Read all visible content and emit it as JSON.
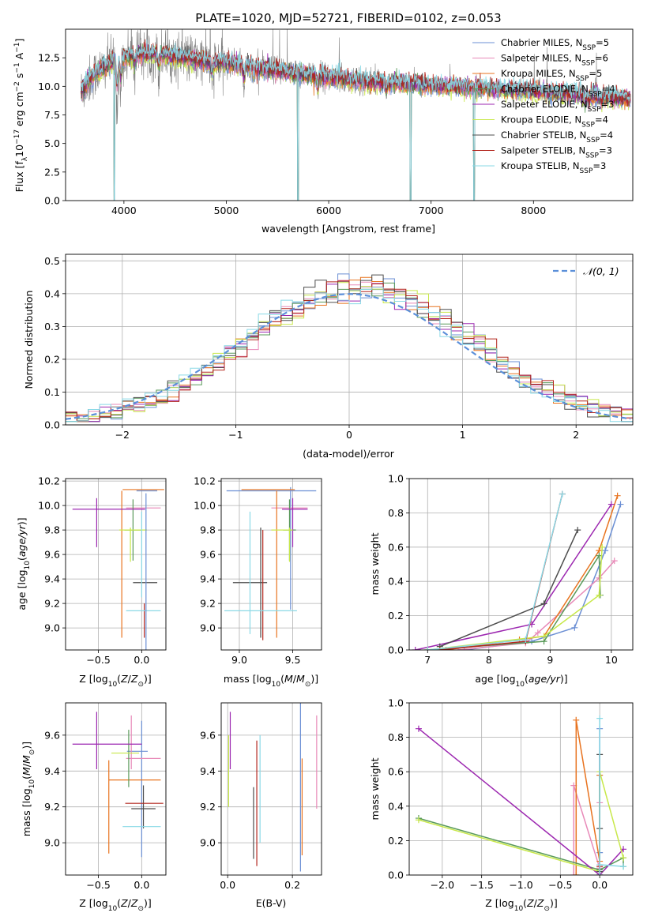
{
  "colors": {
    "series": [
      "#6b8fd4",
      "#e889b8",
      "#e8731f",
      "#5a9a5a",
      "#9c27b0",
      "#c8e84a",
      "#4d4d4d",
      "#b3261e",
      "#8ad9e6"
    ],
    "spectrum_data": "#808080",
    "normal_line": "#5b8fd9"
  },
  "legend_labels": [
    {
      "name": "Chabrier MILES, N",
      "sub": "SSP",
      "eq": "=5"
    },
    {
      "name": "Salpeter MILES, N",
      "sub": "SSP",
      "eq": "=6"
    },
    {
      "name": "Kroupa MILES, N",
      "sub": "SSP",
      "eq": "=5"
    },
    {
      "name": "Chabrier ELODIE, N",
      "sub": "SSP",
      "eq": "=4"
    },
    {
      "name": "Salpeter ELODIE, N",
      "sub": "SSP",
      "eq": "=3"
    },
    {
      "name": "Kroupa ELODIE, N",
      "sub": "SSP",
      "eq": "=4"
    },
    {
      "name": "Chabrier STELIB, N",
      "sub": "SSP",
      "eq": "=4"
    },
    {
      "name": "Salpeter STELIB, N",
      "sub": "SSP",
      "eq": "=3"
    },
    {
      "name": "Kroupa STELIB, N",
      "sub": "SSP",
      "eq": "=3"
    }
  ],
  "chart_data": [
    {
      "id": "spectrum",
      "type": "line",
      "title": "PLATE=1020, MJD=52721, FIBERID=0102, z=0.053",
      "xlabel": "wavelength [Angstrom, rest frame]",
      "ylabel": "Flux [f",
      "ylabel_parts": {
        "main": "Flux [f",
        "sub": "λ",
        "mid": "10",
        "sup1": "−17",
        "rest": " erg cm",
        "sup2": "−2",
        "rest2": " s",
        "sup3": "−1",
        "rest3": " A",
        "sup4": "−1",
        "close": "]"
      },
      "xlim": [
        3430,
        8970
      ],
      "ylim": [
        0,
        15
      ],
      "xticks": [
        4000,
        5000,
        6000,
        7000,
        8000
      ],
      "yticks": [
        0.0,
        2.5,
        5.0,
        7.5,
        10.0,
        12.5
      ],
      "ytick_labels": [
        "0.0",
        "2.5",
        "5.0",
        "7.5",
        "10.0",
        "12.5"
      ],
      "x_range_data": [
        3580,
        8950
      ],
      "continuum": [
        [
          3580,
          9.5
        ],
        [
          3700,
          11.0
        ],
        [
          3900,
          12.2
        ],
        [
          4100,
          12.8
        ],
        [
          4300,
          12.9
        ],
        [
          4500,
          12.6
        ],
        [
          4800,
          12.2
        ],
        [
          5200,
          11.8
        ],
        [
          5600,
          11.2
        ],
        [
          6000,
          10.8
        ],
        [
          6400,
          10.4
        ],
        [
          6800,
          10.2
        ],
        [
          7200,
          10.0
        ],
        [
          7600,
          9.8
        ],
        [
          8000,
          9.6
        ],
        [
          8400,
          9.3
        ],
        [
          8950,
          8.9
        ]
      ],
      "absorption": [
        [
          3934,
          4.0
        ],
        [
          3969,
          3.0
        ],
        [
          4102,
          1.5
        ],
        [
          4340,
          1.8
        ],
        [
          4861,
          1.5
        ],
        [
          5175,
          2.0
        ],
        [
          5270,
          1.2
        ],
        [
          5893,
          1.5
        ],
        [
          6563,
          1.0
        ],
        [
          8498,
          0.8
        ],
        [
          8542,
          1.0
        ],
        [
          8662,
          0.8
        ]
      ],
      "model_gaps": [
        [
          3905,
          0.0
        ],
        [
          5700,
          0.0
        ],
        [
          6800,
          0.0
        ],
        [
          7420,
          0.0
        ]
      ]
    },
    {
      "id": "residuals",
      "type": "bar",
      "xlabel": "(data-model)/error",
      "ylabel": "Normed distribution",
      "xlim": [
        -2.5,
        2.5
      ],
      "ylim": [
        0,
        0.52
      ],
      "xticks": [
        -2,
        -1,
        0,
        1,
        2
      ],
      "xtick_labels": [
        "−2",
        "−1",
        "0",
        "1",
        "2"
      ],
      "yticks": [
        0.0,
        0.1,
        0.2,
        0.3,
        0.4,
        0.5
      ],
      "ytick_labels": [
        "0.0",
        "0.1",
        "0.2",
        "0.3",
        "0.4",
        "0.5"
      ],
      "bin_width": 0.1,
      "legend": "𝒩(0, 1)"
    },
    {
      "id": "age_vs_Z",
      "type": "scatter",
      "xlabel": "Z [log",
      "xlabel_parts": {
        "a": "Z [log",
        "sub": "10",
        "b": "(Z/Z",
        "subsun": "⊙",
        "c": ")]"
      },
      "ylabel_parts": {
        "a": "age  [log",
        "sub": "10",
        "b": "(age/yr)]"
      },
      "xlim": [
        -0.88,
        0.28
      ],
      "ylim": [
        8.82,
        10.22
      ],
      "xticks": [
        -0.5,
        0.0
      ],
      "xtick_labels": [
        "−0.5",
        "0.0"
      ],
      "yticks": [
        9.0,
        9.2,
        9.4,
        9.6,
        9.8,
        10.0,
        10.2
      ],
      "ytick_labels": [
        "9.0",
        "9.2",
        "9.4",
        "9.6",
        "9.8",
        "10.0",
        "10.2"
      ],
      "points": [
        {
          "x": 0.06,
          "y": 10.12,
          "xe": 0.12,
          "ye": 0.0,
          "s": 0
        },
        {
          "x": 0.02,
          "y": 9.98,
          "xe": 0.2,
          "ye": 0.0,
          "s": 1
        },
        {
          "x": 0.02,
          "y": 10.13,
          "xe": 0.24,
          "ye": 0.0,
          "s": 2
        },
        {
          "x": -0.23,
          "y": 9.52,
          "xe": 0.0,
          "ye": 0.6,
          "s": 2
        },
        {
          "x": -0.1,
          "y": 9.8,
          "xe": 0.1,
          "ye": 0.25,
          "s": 3
        },
        {
          "x": -0.38,
          "y": 9.97,
          "xe": 0.42,
          "ye": 0.0,
          "s": 4
        },
        {
          "x": -0.52,
          "y": 9.86,
          "xe": 0.0,
          "ye": 0.2,
          "s": 4
        },
        {
          "x": -0.1,
          "y": 9.8,
          "xe": 0.16,
          "ye": 0.0,
          "s": 5
        },
        {
          "x": -0.13,
          "y": 9.68,
          "xe": 0.0,
          "ye": 0.14,
          "s": 5
        },
        {
          "x": 0.04,
          "y": 9.37,
          "xe": 0.14,
          "ye": 0.0,
          "s": 6
        },
        {
          "x": 0.03,
          "y": 9.06,
          "xe": 0.0,
          "ye": 0.14,
          "s": 7
        },
        {
          "x": 0.02,
          "y": 9.14,
          "xe": 0.2,
          "ye": 0.0,
          "s": 8
        },
        {
          "x": 0.0,
          "y": 9.6,
          "xe": 0.0,
          "ye": 0.35,
          "s": 8
        },
        {
          "x": 0.05,
          "y": 9.45,
          "xe": 0.0,
          "ye": 0.65,
          "s": 0
        }
      ]
    },
    {
      "id": "age_vs_mass",
      "type": "scatter",
      "xlabel_parts": {
        "a": "mass [log",
        "sub": "10",
        "b": "(M/M",
        "subsun": "⊙",
        "c": ")]"
      },
      "xlim": [
        8.83,
        9.77
      ],
      "ylim": [
        8.82,
        10.22
      ],
      "xticks": [
        9.0,
        9.5
      ],
      "xtick_labels": [
        "9.0",
        "9.5"
      ],
      "yticks": [
        9.0,
        9.2,
        9.4,
        9.6,
        9.8,
        10.0,
        10.2
      ],
      "ytick_labels": [
        "9.0",
        "9.2",
        "9.4",
        "9.6",
        "9.8",
        "10.0",
        "10.2"
      ],
      "points": [
        {
          "x": 9.3,
          "y": 10.12,
          "xe": 0.42,
          "ye": 0.0,
          "s": 0
        },
        {
          "x": 9.48,
          "y": 9.65,
          "xe": 0.0,
          "ye": 0.5,
          "s": 0
        },
        {
          "x": 9.47,
          "y": 9.98,
          "xe": 0.17,
          "ye": 0.0,
          "s": 1
        },
        {
          "x": 9.27,
          "y": 10.13,
          "xe": 0.25,
          "ye": 0.0,
          "s": 2
        },
        {
          "x": 9.35,
          "y": 9.52,
          "xe": 0.0,
          "ye": 0.6,
          "s": 2
        },
        {
          "x": 9.47,
          "y": 9.8,
          "xe": 0.06,
          "ye": 0.25,
          "s": 3
        },
        {
          "x": 9.52,
          "y": 9.97,
          "xe": 0.12,
          "ye": 0.0,
          "s": 4
        },
        {
          "x": 9.5,
          "y": 9.86,
          "xe": 0.0,
          "ye": 0.2,
          "s": 4
        },
        {
          "x": 9.4,
          "y": 9.8,
          "xe": 0.1,
          "ye": 0.0,
          "s": 5
        },
        {
          "x": 9.47,
          "y": 9.68,
          "xe": 0.0,
          "ye": 0.14,
          "s": 5
        },
        {
          "x": 9.1,
          "y": 9.37,
          "xe": 0.16,
          "ye": 0.0,
          "s": 6
        },
        {
          "x": 9.2,
          "y": 9.37,
          "xe": 0.0,
          "ye": 0.45,
          "s": 6
        },
        {
          "x": 9.22,
          "y": 9.35,
          "xe": 0.0,
          "ye": 0.45,
          "s": 7
        },
        {
          "x": 9.2,
          "y": 9.14,
          "xe": 0.34,
          "ye": 0.0,
          "s": 8
        },
        {
          "x": 9.1,
          "y": 9.45,
          "xe": 0.0,
          "ye": 0.5,
          "s": 8
        }
      ]
    },
    {
      "id": "mass_weight_vs_age",
      "type": "line",
      "xlabel_parts": {
        "a": "age  [log",
        "sub": "10",
        "b": "(age/yr)]"
      },
      "ylabel": "mass weight",
      "xlim": [
        6.7,
        10.35
      ],
      "ylim": [
        0,
        1
      ],
      "xticks": [
        7,
        8,
        9,
        10
      ],
      "xtick_labels": [
        "7",
        "8",
        "9",
        "10"
      ],
      "yticks": [
        0.0,
        0.2,
        0.4,
        0.6,
        0.8,
        1.0
      ],
      "ytick_labels": [
        "0.0",
        "0.2",
        "0.4",
        "0.6",
        "0.8",
        "1.0"
      ],
      "series": [
        {
          "s": 0,
          "x": [
            7.6,
            8.7,
            9.4,
            9.9,
            10.15
          ],
          "y": [
            0.0,
            0.05,
            0.13,
            0.58,
            0.85
          ]
        },
        {
          "s": 1,
          "x": [
            7.5,
            8.6,
            8.8,
            9.8,
            10.05
          ],
          "y": [
            0.0,
            0.04,
            0.1,
            0.42,
            0.52
          ]
        },
        {
          "s": 2,
          "x": [
            7.3,
            8.5,
            8.9,
            9.8,
            10.1
          ],
          "y": [
            0.0,
            0.06,
            0.08,
            0.58,
            0.9
          ]
        },
        {
          "s": 3,
          "x": [
            7.0,
            8.9,
            9.8,
            9.82
          ],
          "y": [
            0.0,
            0.05,
            0.55,
            0.32
          ]
        },
        {
          "s": 4,
          "x": [
            6.8,
            8.7,
            10.0
          ],
          "y": [
            0.0,
            0.15,
            0.85
          ]
        },
        {
          "s": 5,
          "x": [
            7.0,
            8.9,
            9.8,
            9.85
          ],
          "y": [
            0.0,
            0.08,
            0.32,
            0.6
          ]
        },
        {
          "s": 6,
          "x": [
            7.2,
            8.9,
            9.45
          ],
          "y": [
            0.02,
            0.27,
            0.7
          ]
        },
        {
          "s": 7,
          "x": [
            7.2,
            8.6,
            9.2
          ],
          "y": [
            0.0,
            0.05,
            0.91
          ]
        },
        {
          "s": 8,
          "x": [
            7.0,
            8.6,
            9.2
          ],
          "y": [
            0.0,
            0.06,
            0.91
          ]
        }
      ]
    },
    {
      "id": "mass_vs_Z",
      "type": "scatter",
      "xlabel_parts": {
        "a": "Z [log",
        "sub": "10",
        "b": "(Z/Z",
        "subsun": "⊙",
        "c": ")]"
      },
      "ylabel_parts": {
        "a": "mass [log",
        "sub": "10",
        "b": "(M/M",
        "subsun": "⊙",
        "c": ")]"
      },
      "xlim": [
        -0.88,
        0.28
      ],
      "ylim": [
        8.82,
        9.78
      ],
      "xticks": [
        -0.5,
        0.0
      ],
      "xtick_labels": [
        "−0.5",
        "0.0"
      ],
      "yticks": [
        9.0,
        9.2,
        9.4,
        9.6
      ],
      "ytick_labels": [
        "9.0",
        "9.2",
        "9.4",
        "9.6"
      ],
      "points": [
        {
          "x": -0.05,
          "y": 9.51,
          "xe": 0.12,
          "ye": 0.0,
          "s": 0
        },
        {
          "x": 0.0,
          "y": 9.3,
          "xe": 0.0,
          "ye": 0.38,
          "s": 0
        },
        {
          "x": 0.02,
          "y": 9.47,
          "xe": 0.2,
          "ye": 0.0,
          "s": 1
        },
        {
          "x": -0.12,
          "y": 9.56,
          "xe": 0.0,
          "ye": 0.15,
          "s": 1
        },
        {
          "x": -0.08,
          "y": 9.35,
          "xe": 0.3,
          "ye": 0.0,
          "s": 2
        },
        {
          "x": -0.38,
          "y": 9.2,
          "xe": 0.0,
          "ye": 0.26,
          "s": 2
        },
        {
          "x": -0.15,
          "y": 9.47,
          "xe": 0.0,
          "ye": 0.16,
          "s": 3
        },
        {
          "x": -0.4,
          "y": 9.55,
          "xe": 0.4,
          "ye": 0.0,
          "s": 4
        },
        {
          "x": -0.52,
          "y": 9.57,
          "xe": 0.0,
          "ye": 0.16,
          "s": 4
        },
        {
          "x": -0.19,
          "y": 9.5,
          "xe": 0.16,
          "ye": 0.0,
          "s": 5
        },
        {
          "x": 0.02,
          "y": 9.19,
          "xe": 0.14,
          "ye": 0.0,
          "s": 6
        },
        {
          "x": 0.02,
          "y": 9.2,
          "xe": 0.0,
          "ye": 0.12,
          "s": 6
        },
        {
          "x": 0.03,
          "y": 9.22,
          "xe": 0.22,
          "ye": 0.0,
          "s": 7
        },
        {
          "x": 0.0,
          "y": 9.09,
          "xe": 0.22,
          "ye": 0.0,
          "s": 8
        }
      ]
    },
    {
      "id": "mass_vs_EBV",
      "type": "scatter",
      "xlabel": "E(B-V)",
      "xlim": [
        -0.02,
        0.29
      ],
      "ylim": [
        8.82,
        9.78
      ],
      "xticks": [
        0.0,
        0.2
      ],
      "xtick_labels": [
        "0.0",
        "0.2"
      ],
      "yticks": [
        9.0,
        9.2,
        9.4,
        9.6
      ],
      "ytick_labels": [
        "9.0",
        "9.2",
        "9.4",
        "9.6"
      ],
      "points": [
        {
          "x": 0.003,
          "y": 9.4,
          "xe": 0.0,
          "ye": 0.2,
          "s": 5
        },
        {
          "x": 0.008,
          "y": 9.57,
          "xe": 0.0,
          "ye": 0.16,
          "s": 4
        },
        {
          "x": 0.08,
          "y": 9.11,
          "xe": 0.0,
          "ye": 0.2,
          "s": 6
        },
        {
          "x": 0.09,
          "y": 9.22,
          "xe": 0.0,
          "ye": 0.35,
          "s": 7
        },
        {
          "x": 0.1,
          "y": 9.3,
          "xe": 0.0,
          "ye": 0.3,
          "s": 8
        },
        {
          "x": 0.225,
          "y": 9.31,
          "xe": 0.0,
          "ye": 0.47,
          "s": 0
        },
        {
          "x": 0.23,
          "y": 9.2,
          "xe": 0.0,
          "ye": 0.27,
          "s": 2
        },
        {
          "x": 0.275,
          "y": 9.45,
          "xe": 0.0,
          "ye": 0.26,
          "s": 1
        }
      ]
    },
    {
      "id": "mass_weight_vs_Z",
      "type": "line",
      "xlabel_parts": {
        "a": "Z [log",
        "sub": "10",
        "b": "(Z/Z",
        "subsun": "⊙",
        "c": ")]"
      },
      "ylabel": "mass weight",
      "xlim": [
        -2.42,
        0.42
      ],
      "ylim": [
        0,
        1
      ],
      "xticks": [
        -2.0,
        -1.5,
        -1.0,
        -0.5,
        0.0
      ],
      "xtick_labels": [
        "−2.0",
        "−1.5",
        "−1.0",
        "−0.5",
        "0.0"
      ],
      "yticks": [
        0.0,
        0.2,
        0.4,
        0.6,
        0.8,
        1.0
      ],
      "ytick_labels": [
        "0.0",
        "0.2",
        "0.4",
        "0.6",
        "0.8",
        "1.0"
      ],
      "series": [
        {
          "s": 0,
          "x": [
            0.0,
            0.0,
            0.0,
            0.0
          ],
          "y": [
            0.0,
            0.13,
            0.58,
            0.85
          ]
        },
        {
          "s": 1,
          "x": [
            -0.33,
            -0.33,
            0.0,
            0.0
          ],
          "y": [
            0.0,
            0.52,
            0.04,
            0.42
          ]
        },
        {
          "s": 2,
          "x": [
            -0.3,
            -0.3,
            0.0,
            0.0
          ],
          "y": [
            0.0,
            0.9,
            0.08,
            0.58
          ]
        },
        {
          "s": 3,
          "x": [
            -2.3,
            0.0,
            0.3,
            0.3
          ],
          "y": [
            0.33,
            0.03,
            0.1,
            0.05
          ]
        },
        {
          "s": 4,
          "x": [
            -2.3,
            0.0,
            0.3
          ],
          "y": [
            0.85,
            0.0,
            0.15
          ]
        },
        {
          "s": 5,
          "x": [
            -2.3,
            0.0,
            0.0,
            0.3
          ],
          "y": [
            0.32,
            0.02,
            0.6,
            0.1
          ]
        },
        {
          "s": 6,
          "x": [
            0.0,
            0.0,
            0.0
          ],
          "y": [
            0.02,
            0.27,
            0.7
          ]
        },
        {
          "s": 7,
          "x": [
            0.0,
            0.0
          ],
          "y": [
            0.0,
            0.05
          ]
        },
        {
          "s": 8,
          "x": [
            0.0,
            0.0,
            0.0,
            0.3
          ],
          "y": [
            0.0,
            0.91,
            0.06,
            0.05
          ]
        }
      ]
    }
  ]
}
